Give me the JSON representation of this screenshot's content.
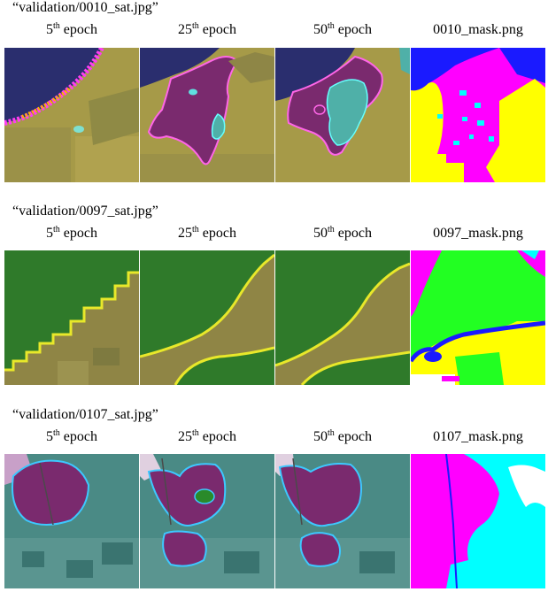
{
  "sections": [
    {
      "title": "“validation/0010_sat.jpg”",
      "columns": [
        {
          "num": "5",
          "sup": "th",
          "rest": " epoch"
        },
        {
          "num": "25",
          "sup": "th",
          "rest": " epoch"
        },
        {
          "num": "50",
          "sup": "th",
          "rest": " epoch"
        },
        {
          "label": "0010_mask.png"
        }
      ]
    },
    {
      "title": "“validation/0097_sat.jpg”",
      "columns": [
        {
          "num": "5",
          "sup": "th",
          "rest": " epoch"
        },
        {
          "num": "25",
          "sup": "th",
          "rest": " epoch"
        },
        {
          "num": "50",
          "sup": "th",
          "rest": " epoch"
        },
        {
          "label": "0097_mask.png"
        }
      ]
    },
    {
      "title": "“validation/0107_sat.jpg”",
      "columns": [
        {
          "num": "5",
          "sup": "th",
          "rest": " epoch"
        },
        {
          "num": "25",
          "sup": "th",
          "rest": " epoch"
        },
        {
          "num": "50",
          "sup": "th",
          "rest": " epoch"
        },
        {
          "label": "0107_mask.png"
        }
      ]
    }
  ],
  "class_colors": {
    "water": "#1a1aff",
    "agriculture": "#ffff00",
    "rangeland": "#ff00ff",
    "urban": "#00ffff",
    "forest": "#22ff22",
    "barren": "#ffffff"
  }
}
